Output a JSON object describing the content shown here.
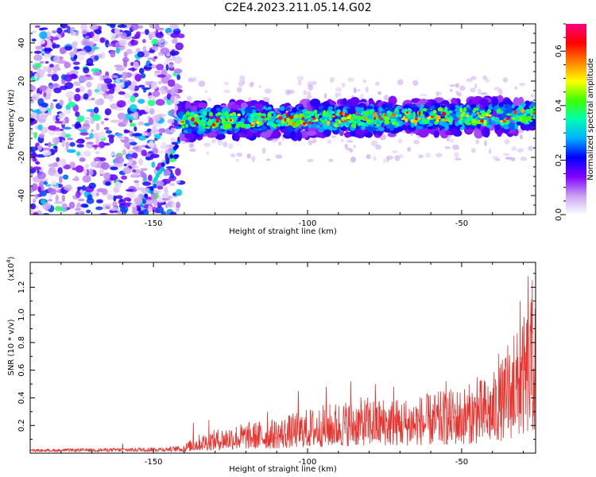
{
  "title": "C2E4.2023.211.05.14.G02",
  "chart_data": [
    {
      "type": "heatmap",
      "xlabel": "Height of straight line (km)",
      "ylabel": "Frequency (Hz)",
      "xlim": [
        -190,
        -26
      ],
      "ylim": [
        -50,
        50
      ],
      "xticks": [
        -150,
        -100,
        -50
      ],
      "yticks": [
        -40,
        -20,
        0,
        20,
        40
      ],
      "colorbar": {
        "label": "Normalized spectral amplitude",
        "range": [
          0.0,
          0.7
        ],
        "ticks": [
          0.0,
          0.2,
          0.4,
          0.6
        ],
        "colormap": [
          "#ffffff",
          "#c8a0f0",
          "#8000ff",
          "#0000ff",
          "#00b0ff",
          "#00ffb0",
          "#40ff00",
          "#ffff00",
          "#ff8000",
          "#ff0000",
          "#ff0080"
        ]
      },
      "description_regions": [
        {
          "x_range": [
            -190,
            -141
          ],
          "freq_range": [
            -50,
            50
          ],
          "typical_amplitude": 0.05
        },
        {
          "x_range": [
            -141,
            -26
          ],
          "freq_range": [
            -10,
            8
          ],
          "typical_amplitude": 0.3,
          "center_freq_start": -1,
          "center_freq_end": 2
        }
      ]
    },
    {
      "type": "line",
      "xlabel": "Height of straight line (km)",
      "ylabel": "SNR (10 * v/v)",
      "yunit_label": "(x10",
      "yunit_exp": "4",
      "yunit_close": ")",
      "xlim": [
        -190,
        -26
      ],
      "ylim": [
        0,
        1.38
      ],
      "xticks": [
        -150,
        -100,
        -50
      ],
      "yticks": [
        0.2,
        0.4,
        0.6,
        0.8,
        1.0,
        1.2
      ],
      "color": "#e8332e",
      "envelope": [
        {
          "x": -190,
          "y": 0.02
        },
        {
          "x": -160,
          "y": 0.03
        },
        {
          "x": -145,
          "y": 0.04
        },
        {
          "x": -141,
          "y": 0.05
        },
        {
          "x": -135,
          "y": 0.12
        },
        {
          "x": -125,
          "y": 0.18
        },
        {
          "x": -110,
          "y": 0.22
        },
        {
          "x": -100,
          "y": 0.28
        },
        {
          "x": -90,
          "y": 0.33
        },
        {
          "x": -80,
          "y": 0.36
        },
        {
          "x": -70,
          "y": 0.35
        },
        {
          "x": -60,
          "y": 0.38
        },
        {
          "x": -50,
          "y": 0.42
        },
        {
          "x": -40,
          "y": 0.5
        },
        {
          "x": -35,
          "y": 0.65
        },
        {
          "x": -30,
          "y": 0.85
        },
        {
          "x": -27,
          "y": 1.0
        }
      ],
      "peaks": [
        {
          "x": -28.5,
          "y": 1.28
        },
        {
          "x": -31,
          "y": 1.1
        },
        {
          "x": -27,
          "y": 1.25
        },
        {
          "x": -33,
          "y": 0.85
        },
        {
          "x": -35,
          "y": 0.78
        },
        {
          "x": -38,
          "y": 0.72
        },
        {
          "x": -45,
          "y": 0.55
        },
        {
          "x": -55,
          "y": 0.52
        },
        {
          "x": -72,
          "y": 0.48
        },
        {
          "x": -78,
          "y": 0.5
        },
        {
          "x": -86,
          "y": 0.52
        },
        {
          "x": -94,
          "y": 0.48
        },
        {
          "x": -103,
          "y": 0.45
        },
        {
          "x": -113,
          "y": 0.3
        },
        {
          "x": -132,
          "y": 0.24
        },
        {
          "x": -137,
          "y": 0.22
        },
        {
          "x": -160,
          "y": 0.07
        }
      ]
    }
  ]
}
